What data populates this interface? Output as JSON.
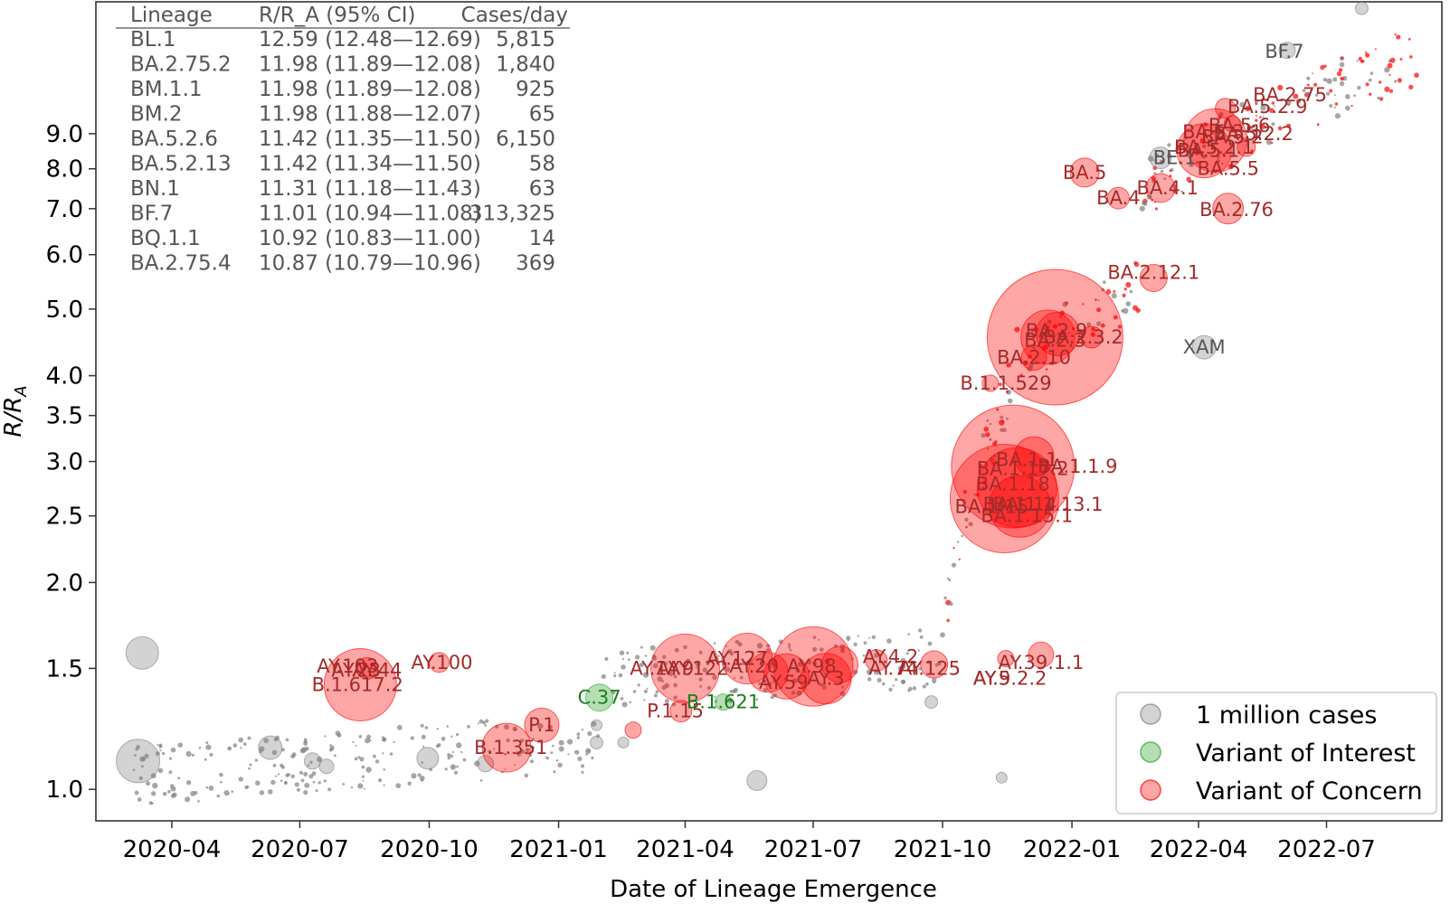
{
  "chart_data": {
    "type": "scatter",
    "xlabel": "Date of Lineage Emergence",
    "ylabel_main": "R/R",
    "ylabel_sub": "A",
    "y_scale": "log",
    "xlim": [
      "2020-02-07",
      "2022-09-21"
    ],
    "ylim": [
      0.9,
      14.0
    ],
    "x_ticks": [
      "2020-04",
      "2020-07",
      "2020-10",
      "2021-01",
      "2021-04",
      "2021-07",
      "2021-10",
      "2022-01",
      "2022-04",
      "2022-07"
    ],
    "y_ticks": [
      {
        "value": 1.0,
        "label": "1.0"
      },
      {
        "value": 1.5,
        "label": "1.5"
      },
      {
        "value": 2.0,
        "label": "2.0"
      },
      {
        "value": 2.5,
        "label": "2.5"
      },
      {
        "value": 3.0,
        "label": "3.0"
      },
      {
        "value": 3.5,
        "label": "3.5"
      },
      {
        "value": 4.0,
        "label": "4.0"
      },
      {
        "value": 5.0,
        "label": "5.0"
      },
      {
        "value": 6.0,
        "label": "6.0"
      },
      {
        "value": 7.0,
        "label": "7.0"
      },
      {
        "value": 8.0,
        "label": "8.0"
      },
      {
        "value": 9.0,
        "label": "9.0"
      }
    ],
    "legend": {
      "position": "lower-right",
      "entries": [
        {
          "label": "1 million cases",
          "color": "#808080"
        },
        {
          "label": "Variant of Interest",
          "color": "#2ca02c"
        },
        {
          "label": "Variant of Concern",
          "color": "#ff0000"
        }
      ]
    },
    "colors": {
      "other": "#808080",
      "voi": "#2ca02c",
      "voc": "#ff0000",
      "voc_text": "#a52a2a",
      "voi_text": "#1a7f1a",
      "other_text": "#555555"
    },
    "table": {
      "headers": [
        "Lineage",
        "R/R_A (95% CI)",
        "Cases/day"
      ],
      "rows": [
        [
          "BL.1",
          "12.59 (12.48—12.69)",
          "5,815"
        ],
        [
          "BA.2.75.2",
          "11.98 (11.89—12.08)",
          "1,840"
        ],
        [
          "BM.1.1",
          "11.98 (11.89—12.08)",
          "925"
        ],
        [
          "BM.2",
          "11.98 (11.88—12.07)",
          "65"
        ],
        [
          "BA.5.2.6",
          "11.42 (11.35—11.50)",
          "6,150"
        ],
        [
          "BA.5.2.13",
          "11.42 (11.34—11.50)",
          "58"
        ],
        [
          "BN.1",
          "11.31 (11.18—11.43)",
          "63"
        ],
        [
          "BF.7",
          "11.01 (10.94—11.08)",
          "313,325"
        ],
        [
          "BQ.1.1",
          "10.92 (10.83—11.00)",
          "14"
        ],
        [
          "BA.2.75.4",
          "10.87 (10.79—10.96)",
          "369"
        ]
      ]
    },
    "bubbles": [
      {
        "x": "2020-03-08",
        "y": 1.1,
        "r": 24,
        "cat": "other"
      },
      {
        "x": "2020-03-11",
        "y": 1.58,
        "r": 18,
        "cat": "other"
      },
      {
        "x": "2020-06-10",
        "y": 1.15,
        "r": 13,
        "cat": "other"
      },
      {
        "x": "2021-05-22",
        "y": 1.03,
        "r": 11,
        "cat": "other"
      },
      {
        "x": "2022-04-05",
        "y": 4.4,
        "r": 13,
        "cat": "other"
      },
      {
        "x": "2022-03-05",
        "y": 8.3,
        "r": 12,
        "cat": "other"
      },
      {
        "x": "2022-06-03",
        "y": 11.9,
        "r": 9,
        "cat": "other"
      },
      {
        "x": "2022-07-26",
        "y": 13.7,
        "r": 7,
        "cat": "other"
      },
      {
        "x": "2020-09-30",
        "y": 1.11,
        "r": 12,
        "cat": "other"
      },
      {
        "x": "2020-07-10",
        "y": 1.1,
        "r": 9,
        "cat": "other"
      },
      {
        "x": "2020-07-20",
        "y": 1.08,
        "r": 8,
        "cat": "other"
      },
      {
        "x": "2020-11-10",
        "y": 1.09,
        "r": 9,
        "cat": "other"
      },
      {
        "x": "2021-01-28",
        "y": 1.17,
        "r": 7,
        "cat": "other"
      },
      {
        "x": "2021-01-28",
        "y": 1.24,
        "r": 6,
        "cat": "other"
      },
      {
        "x": "2021-02-16",
        "y": 1.17,
        "r": 6,
        "cat": "other"
      },
      {
        "x": "2021-09-23",
        "y": 1.34,
        "r": 7,
        "cat": "other"
      },
      {
        "x": "2021-11-12",
        "y": 1.04,
        "r": 6,
        "cat": "other"
      },
      {
        "x": "2021-01-30",
        "y": 1.36,
        "r": 15,
        "cat": "voi"
      },
      {
        "x": "2021-04-28",
        "y": 1.34,
        "r": 9,
        "cat": "voi"
      },
      {
        "x": "2020-08-13",
        "y": 1.42,
        "r": 40,
        "cat": "voc"
      },
      {
        "x": "2020-08-18",
        "y": 1.5,
        "r": 12,
        "cat": "voc"
      },
      {
        "x": "2020-10-08",
        "y": 1.53,
        "r": 11,
        "cat": "voc"
      },
      {
        "x": "2020-11-25",
        "y": 1.15,
        "r": 27,
        "cat": "voc"
      },
      {
        "x": "2020-12-20",
        "y": 1.24,
        "r": 19,
        "cat": "voc"
      },
      {
        "x": "2021-02-23",
        "y": 1.22,
        "r": 9,
        "cat": "voc"
      },
      {
        "x": "2021-03-29",
        "y": 1.3,
        "r": 12,
        "cat": "voc"
      },
      {
        "x": "2021-04-01",
        "y": 1.5,
        "r": 38,
        "cat": "voc"
      },
      {
        "x": "2021-05-15",
        "y": 1.55,
        "r": 28,
        "cat": "voc"
      },
      {
        "x": "2021-05-30",
        "y": 1.48,
        "r": 22,
        "cat": "voc"
      },
      {
        "x": "2021-06-12",
        "y": 1.46,
        "r": 25,
        "cat": "voc"
      },
      {
        "x": "2021-07-01",
        "y": 1.51,
        "r": 44,
        "cat": "voc"
      },
      {
        "x": "2021-07-10",
        "y": 1.45,
        "r": 28,
        "cat": "voc"
      },
      {
        "x": "2021-07-20",
        "y": 1.52,
        "r": 20,
        "cat": "voc"
      },
      {
        "x": "2021-08-15",
        "y": 1.54,
        "r": 12,
        "cat": "voc"
      },
      {
        "x": "2021-09-25",
        "y": 1.52,
        "r": 15,
        "cat": "voc"
      },
      {
        "x": "2021-11-15",
        "y": 1.55,
        "r": 9,
        "cat": "voc"
      },
      {
        "x": "2021-12-10",
        "y": 1.57,
        "r": 14,
        "cat": "voc"
      },
      {
        "x": "2021-11-20",
        "y": 2.95,
        "r": 68,
        "cat": "voc"
      },
      {
        "x": "2021-11-14",
        "y": 2.65,
        "r": 60,
        "cat": "voc"
      },
      {
        "x": "2021-11-23",
        "y": 2.75,
        "r": 44,
        "cat": "voc"
      },
      {
        "x": "2021-12-05",
        "y": 3.05,
        "r": 22,
        "cat": "voc"
      },
      {
        "x": "2021-11-25",
        "y": 2.58,
        "r": 34,
        "cat": "voc"
      },
      {
        "x": "2021-12-20",
        "y": 4.55,
        "r": 75,
        "cat": "voc"
      },
      {
        "x": "2021-12-15",
        "y": 4.55,
        "r": 30,
        "cat": "voc"
      },
      {
        "x": "2021-12-22",
        "y": 4.6,
        "r": 24,
        "cat": "voc"
      },
      {
        "x": "2021-12-05",
        "y": 4.25,
        "r": 14,
        "cat": "voc"
      },
      {
        "x": "2021-11-04",
        "y": 3.9,
        "r": 9,
        "cat": "voc"
      },
      {
        "x": "2022-01-15",
        "y": 4.55,
        "r": 12,
        "cat": "voc"
      },
      {
        "x": "2022-02-28",
        "y": 5.55,
        "r": 15,
        "cat": "voc"
      },
      {
        "x": "2022-01-10",
        "y": 7.9,
        "r": 16,
        "cat": "voc"
      },
      {
        "x": "2022-02-03",
        "y": 7.25,
        "r": 12,
        "cat": "voc"
      },
      {
        "x": "2022-03-05",
        "y": 7.5,
        "r": 16,
        "cat": "voc"
      },
      {
        "x": "2022-04-13",
        "y": 8.8,
        "r": 35,
        "cat": "voc"
      },
      {
        "x": "2022-04-05",
        "y": 8.5,
        "r": 30,
        "cat": "voc"
      },
      {
        "x": "2022-04-22",
        "y": 7.0,
        "r": 17,
        "cat": "voc"
      },
      {
        "x": "2022-04-20",
        "y": 9.8,
        "r": 11,
        "cat": "voc"
      },
      {
        "x": "2022-05-05",
        "y": 8.6,
        "r": 10,
        "cat": "voc"
      },
      {
        "x": "2022-04-25",
        "y": 9.3,
        "r": 9,
        "cat": "voc"
      }
    ],
    "annotations": [
      {
        "text": "AY.103",
        "x": "2020-08-04",
        "y": 1.51,
        "cat": "voc"
      },
      {
        "text": "AY.23",
        "x": "2020-08-10",
        "y": 1.49,
        "cat": "voc"
      },
      {
        "text": "AY.44",
        "x": "2020-08-25",
        "y": 1.49,
        "cat": "voc"
      },
      {
        "text": "AY.100",
        "x": "2020-10-10",
        "y": 1.53,
        "cat": "voc"
      },
      {
        "text": "B.1.617.2",
        "x": "2020-08-11",
        "y": 1.42,
        "cat": "voc"
      },
      {
        "text": "B.1.351",
        "x": "2020-11-28",
        "y": 1.15,
        "cat": "voc"
      },
      {
        "text": "P.1",
        "x": "2020-12-20",
        "y": 1.24,
        "cat": "voc"
      },
      {
        "text": "C.37",
        "x": "2021-01-30",
        "y": 1.36,
        "cat": "voi"
      },
      {
        "text": "P.1.15",
        "x": "2021-03-25",
        "y": 1.3,
        "cat": "voc"
      },
      {
        "text": "B.1.621",
        "x": "2021-04-28",
        "y": 1.34,
        "cat": "voi"
      },
      {
        "text": "AY.1",
        "x": "2021-03-06",
        "y": 1.5,
        "cat": "voc"
      },
      {
        "text": "AY.9",
        "x": "2021-03-25",
        "y": 1.5,
        "cat": "voc"
      },
      {
        "text": "AY.122",
        "x": "2021-04-10",
        "y": 1.5,
        "cat": "voc"
      },
      {
        "text": "AY.127",
        "x": "2021-05-08",
        "y": 1.55,
        "cat": "voc"
      },
      {
        "text": "AY.20",
        "x": "2021-05-20",
        "y": 1.51,
        "cat": "voc"
      },
      {
        "text": "AY.59",
        "x": "2021-06-10",
        "y": 1.43,
        "cat": "voc"
      },
      {
        "text": "AY.98",
        "x": "2021-06-30",
        "y": 1.51,
        "cat": "voc"
      },
      {
        "text": "AY.3",
        "x": "2021-07-10",
        "y": 1.45,
        "cat": "voc"
      },
      {
        "text": "AY.4.2",
        "x": "2021-08-25",
        "y": 1.56,
        "cat": "voc"
      },
      {
        "text": "AY.74",
        "x": "2021-08-27",
        "y": 1.5,
        "cat": "voc"
      },
      {
        "text": "AY.125",
        "x": "2021-09-22",
        "y": 1.5,
        "cat": "voc"
      },
      {
        "text": "AY.5",
        "x": "2021-11-05",
        "y": 1.45,
        "cat": "voc"
      },
      {
        "text": "AY.39.1.1",
        "x": "2021-12-10",
        "y": 1.53,
        "cat": "voc"
      },
      {
        "text": "AY.9.2.2",
        "x": "2021-11-18",
        "y": 1.45,
        "cat": "voc"
      },
      {
        "text": "B.1.1.529",
        "x": "2021-11-15",
        "y": 3.9,
        "cat": "voc"
      },
      {
        "text": "BA.1.1",
        "x": "2021-11-30",
        "y": 3.02,
        "cat": "voc"
      },
      {
        "text": "BA.1.17.2",
        "x": "2021-11-27",
        "y": 2.93,
        "cat": "voc"
      },
      {
        "text": "BA.1.1.9",
        "x": "2022-01-05",
        "y": 2.95,
        "cat": "voc"
      },
      {
        "text": "BA.1.18",
        "x": "2021-11-20",
        "y": 2.78,
        "cat": "voc"
      },
      {
        "text": "BA.1.14",
        "x": "2021-11-25",
        "y": 2.6,
        "cat": "voc"
      },
      {
        "text": "BA.1.1.13.1",
        "x": "2021-12-15",
        "y": 2.6,
        "cat": "voc"
      },
      {
        "text": "BA.1.15",
        "x": "2021-11-05",
        "y": 2.58,
        "cat": "voc"
      },
      {
        "text": "BA.1.15.1",
        "x": "2021-11-30",
        "y": 2.5,
        "cat": "voc"
      },
      {
        "text": "BA.2.9",
        "x": "2021-12-21",
        "y": 4.65,
        "cat": "voc"
      },
      {
        "text": "BA.2.3",
        "x": "2021-12-20",
        "y": 4.5,
        "cat": "voc"
      },
      {
        "text": "BA.2.3.2",
        "x": "2022-01-09",
        "y": 4.55,
        "cat": "voc"
      },
      {
        "text": "BA.2.10",
        "x": "2021-12-05",
        "y": 4.25,
        "cat": "voc"
      },
      {
        "text": "BA.2.12.1",
        "x": "2022-02-28",
        "y": 5.65,
        "cat": "voc"
      },
      {
        "text": "XAM",
        "x": "2022-04-05",
        "y": 4.4,
        "cat": "other"
      },
      {
        "text": "BA.5",
        "x": "2022-01-10",
        "y": 7.9,
        "cat": "voc"
      },
      {
        "text": "BA.4",
        "x": "2022-02-03",
        "y": 7.25,
        "cat": "voc"
      },
      {
        "text": "BA.4.1",
        "x": "2022-03-10",
        "y": 7.5,
        "cat": "voc"
      },
      {
        "text": "BA.5.5",
        "x": "2022-04-22",
        "y": 8.0,
        "cat": "voc"
      },
      {
        "text": "BA.2.76",
        "x": "2022-04-28",
        "y": 6.98,
        "cat": "voc"
      },
      {
        "text": "BE.1",
        "x": "2022-03-15",
        "y": 8.3,
        "cat": "other"
      },
      {
        "text": "BA.5.1",
        "x": "2022-04-08",
        "y": 8.5,
        "cat": "voc"
      },
      {
        "text": "BA.5.2",
        "x": "2022-04-25",
        "y": 8.9,
        "cat": "voc"
      },
      {
        "text": "BA.5.2.1",
        "x": "2022-04-12",
        "y": 8.6,
        "cat": "voc"
      },
      {
        "text": "BA.5.2.2",
        "x": "2022-05-10",
        "y": 9.0,
        "cat": "voc"
      },
      {
        "text": "BA.5.6",
        "x": "2022-04-30",
        "y": 9.25,
        "cat": "voc"
      },
      {
        "text": "BA.5.3.1",
        "x": "2022-04-18",
        "y": 9.05,
        "cat": "voc"
      },
      {
        "text": "BA.2.75",
        "x": "2022-06-05",
        "y": 10.25,
        "cat": "voc"
      },
      {
        "text": "BA.5.2.9",
        "x": "2022-05-20",
        "y": 9.85,
        "cat": "voc"
      },
      {
        "text": "BF.7",
        "x": "2022-06-01",
        "y": 11.85,
        "cat": "other"
      }
    ]
  }
}
